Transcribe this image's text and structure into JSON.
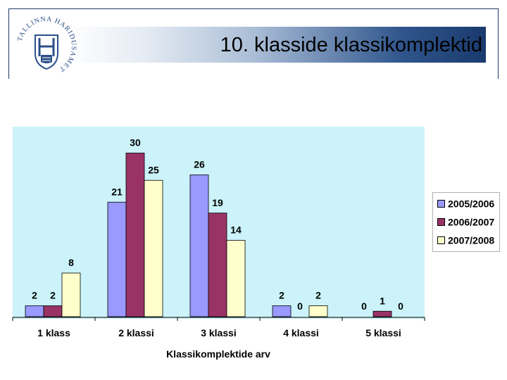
{
  "header": {
    "title": "10. klasside klassikomplektid"
  },
  "logo": {
    "ring_text": "TALLINNA HARIDUSAMET",
    "icon": "tallinn-coat-of-arms-icon"
  },
  "colors": {
    "series1": "#9999ff",
    "series2": "#993366",
    "series3": "#ffffcc",
    "plot_bg": "#cbf3f9",
    "header_band": "#1a3a6d"
  },
  "chart_data": {
    "type": "bar",
    "title": "",
    "xlabel": "Klassikomplektide arv",
    "ylabel": "",
    "categories": [
      "1 klass",
      "2 klassi",
      "3 klassi",
      "4 klassi",
      "5 klassi"
    ],
    "series": [
      {
        "name": "2005/2006",
        "values": [
          2,
          21,
          26,
          2,
          0
        ]
      },
      {
        "name": "2006/2007",
        "values": [
          2,
          30,
          19,
          0,
          1
        ]
      },
      {
        "name": "2007/2008",
        "values": [
          8,
          25,
          14,
          2,
          0
        ]
      }
    ],
    "ylim": [
      0,
      30
    ],
    "grid": false,
    "legend": "right"
  }
}
